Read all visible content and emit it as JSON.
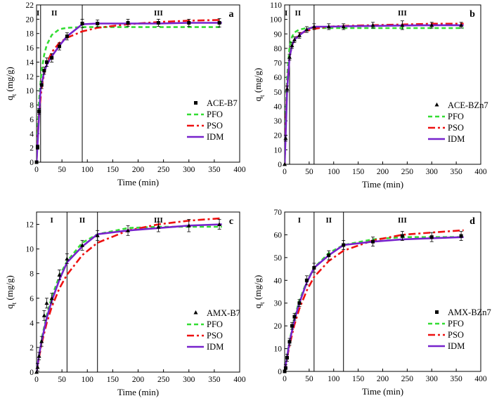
{
  "chart_data": [
    {
      "type": "line",
      "panel": "a",
      "xlabel": "Time (min)",
      "ylabel": "q",
      "ylabel_sub": "t",
      "ylabel_unit": " (mg/g)",
      "xlim": [
        0,
        400
      ],
      "ylim": [
        0,
        22
      ],
      "xticks": [
        0,
        50,
        100,
        150,
        200,
        250,
        300,
        350,
        400
      ],
      "yticks": [
        0,
        2,
        4,
        6,
        8,
        10,
        12,
        14,
        16,
        18,
        20,
        22
      ],
      "regions": [
        {
          "label": "I",
          "x": 3
        },
        {
          "label": "II",
          "x": 35
        },
        {
          "label": "III",
          "x": 240
        }
      ],
      "dividers": [
        8,
        90
      ],
      "legend": "lower-right",
      "colors": {
        "marker": "#000000",
        "PFO": "#33dd33",
        "PSO": "#ee1111",
        "IDM": "#7722cc"
      },
      "data": {
        "name": "ACE-B7",
        "marker": "square",
        "x": [
          0,
          2,
          5,
          10,
          15,
          20,
          30,
          45,
          60,
          90,
          120,
          180,
          240,
          300,
          360
        ],
        "y": [
          0,
          2.1,
          7.1,
          10.8,
          12.8,
          14.0,
          14.6,
          16.2,
          17.6,
          19.4,
          19.4,
          19.5,
          19.5,
          19.5,
          19.5
        ],
        "err": [
          0,
          0.3,
          0.4,
          0.5,
          0.5,
          0.6,
          0.6,
          0.5,
          0.5,
          0.6,
          0.5,
          0.5,
          0.5,
          0.5,
          0.6
        ]
      },
      "series": [
        {
          "name": "PFO",
          "x": [
            0,
            2,
            5,
            10,
            15,
            20,
            30,
            45,
            60,
            90,
            120,
            180,
            240,
            300,
            365
          ],
          "y": [
            0,
            4.2,
            8.6,
            12.8,
            15.0,
            16.4,
            17.8,
            18.6,
            18.8,
            18.9,
            18.9,
            18.9,
            18.9,
            18.9,
            18.9
          ]
        },
        {
          "name": "PSO",
          "x": [
            0,
            2,
            5,
            10,
            15,
            20,
            30,
            45,
            60,
            90,
            120,
            180,
            240,
            300,
            365
          ],
          "y": [
            0,
            3.2,
            6.8,
            10.4,
            12.4,
            13.8,
            15.4,
            16.7,
            17.4,
            18.3,
            18.8,
            19.3,
            19.6,
            19.8,
            19.9
          ]
        },
        {
          "name": "IDM",
          "x": [
            0,
            2,
            5,
            8,
            10,
            15,
            20,
            30,
            45,
            60,
            90,
            120,
            180,
            240,
            300,
            365
          ],
          "y": [
            0,
            2.5,
            6.6,
            10.2,
            10.9,
            12.6,
            13.6,
            14.8,
            16.3,
            17.6,
            19.3,
            19.4,
            19.4,
            19.4,
            19.5,
            19.5
          ]
        }
      ]
    },
    {
      "type": "line",
      "panel": "b",
      "xlabel": "Time (min)",
      "ylabel": "q",
      "ylabel_sub": "t",
      "ylabel_unit": " (mg/g)",
      "xlim": [
        0,
        400
      ],
      "ylim": [
        0,
        110
      ],
      "xticks": [
        0,
        50,
        100,
        150,
        200,
        250,
        300,
        350,
        400
      ],
      "yticks": [
        0,
        10,
        20,
        30,
        40,
        50,
        60,
        70,
        80,
        90,
        100,
        110
      ],
      "regions": [
        {
          "label": "I",
          "x": 3
        },
        {
          "label": "II",
          "x": 27
        },
        {
          "label": "III",
          "x": 240
        }
      ],
      "dividers": [
        10,
        60
      ],
      "legend": "lower-right",
      "colors": {
        "marker": "#000000",
        "PFO": "#33dd33",
        "PSO": "#ee1111",
        "IDM": "#7722cc"
      },
      "data": {
        "name": "ACE-BZn7",
        "marker": "triangle",
        "x": [
          0,
          2,
          5,
          10,
          15,
          20,
          30,
          45,
          60,
          90,
          120,
          180,
          240,
          300,
          360
        ],
        "y": [
          0,
          18,
          52,
          74,
          82,
          86,
          89,
          93,
          95,
          95,
          95,
          96,
          96,
          96,
          96
        ],
        "err": [
          0,
          2,
          2,
          2,
          2,
          2,
          2,
          2,
          2,
          2,
          2,
          2,
          3,
          2,
          2
        ]
      },
      "series": [
        {
          "name": "PFO",
          "x": [
            0,
            2,
            5,
            10,
            15,
            20,
            30,
            45,
            60,
            90,
            120,
            180,
            240,
            300,
            365
          ],
          "y": [
            0,
            30,
            60,
            81,
            88,
            91,
            93,
            94,
            94,
            94,
            94,
            94,
            94,
            94,
            94
          ]
        },
        {
          "name": "PSO",
          "x": [
            0,
            2,
            5,
            10,
            15,
            20,
            30,
            45,
            60,
            90,
            120,
            180,
            240,
            300,
            365
          ],
          "y": [
            0,
            26,
            54,
            74,
            82,
            86,
            90,
            92,
            93.5,
            95,
            95.5,
            96,
            96.5,
            97,
            97
          ]
        },
        {
          "name": "IDM",
          "x": [
            0,
            2,
            5,
            10,
            15,
            20,
            30,
            45,
            60,
            90,
            120,
            180,
            240,
            300,
            365
          ],
          "y": [
            0,
            20,
            52,
            74,
            82,
            86,
            89,
            93,
            95,
            95,
            95.2,
            95.5,
            95.8,
            96,
            96
          ]
        }
      ]
    },
    {
      "type": "line",
      "panel": "c",
      "xlabel": "Time (min)",
      "ylabel": "q",
      "ylabel_sub": "t",
      "ylabel_unit": " (mg/g)",
      "xlim": [
        0,
        400
      ],
      "ylim": [
        0,
        13
      ],
      "xticks": [
        0,
        50,
        100,
        150,
        200,
        250,
        300,
        350,
        400
      ],
      "yticks": [
        0,
        2,
        4,
        6,
        8,
        10,
        12
      ],
      "regions": [
        {
          "label": "I",
          "x": 30
        },
        {
          "label": "II",
          "x": 90
        },
        {
          "label": "III",
          "x": 240
        }
      ],
      "dividers": [
        60,
        120
      ],
      "legend": "lower-right",
      "colors": {
        "marker": "#000000",
        "PFO": "#33dd33",
        "PSO": "#ee1111",
        "IDM": "#7722cc"
      },
      "data": {
        "name": "AMX-B7",
        "marker": "triangle",
        "x": [
          0,
          2,
          5,
          10,
          15,
          20,
          30,
          45,
          60,
          90,
          120,
          180,
          240,
          300,
          360
        ],
        "y": [
          0,
          0.4,
          1.3,
          2.5,
          4.6,
          5.6,
          6.0,
          7.9,
          9.2,
          10.3,
          11.1,
          11.5,
          11.8,
          11.9,
          12.0
        ],
        "err": [
          0,
          0.3,
          0.3,
          0.4,
          0.4,
          0.4,
          0.4,
          0.4,
          0.4,
          0.4,
          0.4,
          0.4,
          0.4,
          0.5,
          0.4
        ]
      },
      "series": [
        {
          "name": "PFO",
          "x": [
            0,
            5,
            10,
            20,
            30,
            45,
            60,
            90,
            120,
            180,
            240,
            300,
            365
          ],
          "y": [
            0,
            1.4,
            2.7,
            4.6,
            6.1,
            7.8,
            9.0,
            10.5,
            11.2,
            11.7,
            11.8,
            11.8,
            11.8
          ]
        },
        {
          "name": "PSO",
          "x": [
            0,
            5,
            10,
            20,
            30,
            45,
            60,
            90,
            120,
            180,
            240,
            300,
            365
          ],
          "y": [
            0,
            1.2,
            2.3,
            4.0,
            5.3,
            6.8,
            7.9,
            9.5,
            10.5,
            11.5,
            12.0,
            12.3,
            12.5
          ]
        },
        {
          "name": "IDM",
          "x": [
            0,
            5,
            10,
            20,
            30,
            45,
            60,
            90,
            120,
            180,
            240,
            300,
            365
          ],
          "y": [
            0,
            1.4,
            2.5,
            4.4,
            5.8,
            7.5,
            8.9,
            10.2,
            11.2,
            11.5,
            11.7,
            11.9,
            12.0
          ]
        }
      ]
    },
    {
      "type": "line",
      "panel": "d",
      "xlabel": "Time (min)",
      "ylabel": "q",
      "ylabel_sub": "t",
      "ylabel_unit": " (mg/g)",
      "xlim": [
        0,
        400
      ],
      "ylim": [
        0,
        70
      ],
      "xticks": [
        0,
        50,
        100,
        150,
        200,
        250,
        300,
        350,
        400
      ],
      "yticks": [
        0,
        10,
        20,
        30,
        40,
        50,
        60,
        70
      ],
      "regions": [
        {
          "label": "I",
          "x": 30
        },
        {
          "label": "II",
          "x": 90
        },
        {
          "label": "III",
          "x": 240
        }
      ],
      "dividers": [
        60,
        120
      ],
      "legend": "lower-right",
      "colors": {
        "marker": "#000000",
        "PFO": "#33dd33",
        "PSO": "#ee1111",
        "IDM": "#7722cc"
      },
      "data": {
        "name": "AMX-BZn7",
        "marker": "square",
        "x": [
          0,
          2,
          5,
          10,
          15,
          20,
          30,
          45,
          60,
          90,
          120,
          180,
          240,
          300,
          360
        ],
        "y": [
          0,
          1.5,
          6,
          13,
          20,
          24,
          30,
          40,
          45.5,
          51,
          55.5,
          57,
          59.5,
          59,
          59.5
        ],
        "err": [
          0,
          1.5,
          1.5,
          1.5,
          1.5,
          1.5,
          1.5,
          2,
          2,
          2,
          2,
          2,
          2,
          2,
          2
        ]
      },
      "series": [
        {
          "name": "PFO",
          "x": [
            0,
            5,
            10,
            20,
            30,
            45,
            60,
            90,
            120,
            180,
            240,
            300,
            365
          ],
          "y": [
            0,
            7,
            13.5,
            23.5,
            31,
            39.5,
            45.5,
            52,
            55.5,
            58,
            59,
            59,
            59
          ]
        },
        {
          "name": "PSO",
          "x": [
            0,
            5,
            10,
            20,
            30,
            45,
            60,
            90,
            120,
            180,
            240,
            300,
            365
          ],
          "y": [
            0,
            6,
            11.5,
            20.5,
            27.5,
            35.5,
            41.5,
            48.5,
            53,
            57.5,
            60,
            61,
            62
          ]
        },
        {
          "name": "IDM",
          "x": [
            0,
            5,
            10,
            20,
            30,
            45,
            60,
            90,
            120,
            180,
            240,
            300,
            365
          ],
          "y": [
            0,
            6.5,
            13,
            22.5,
            30,
            39,
            45.5,
            51,
            55.5,
            57,
            58,
            58.5,
            59
          ]
        }
      ]
    }
  ]
}
